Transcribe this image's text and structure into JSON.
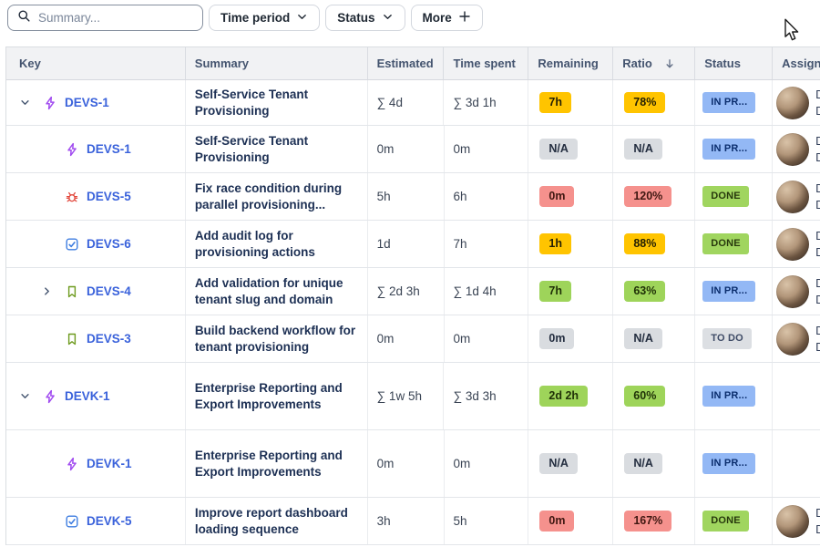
{
  "toolbar": {
    "search": {
      "placeholder": "Summary...",
      "icon": "search-icon"
    },
    "filters": [
      {
        "label": "Time period",
        "icon": "chevron-down-icon"
      },
      {
        "label": "Status",
        "icon": "chevron-down-icon"
      },
      {
        "label": "More",
        "icon": "plus-icon"
      }
    ]
  },
  "table": {
    "columns": [
      {
        "label": "Key"
      },
      {
        "label": "Summary"
      },
      {
        "label": "Estimated"
      },
      {
        "label": "Time spent"
      },
      {
        "label": "Remaining"
      },
      {
        "label": "Ratio",
        "sort": true
      },
      {
        "label": "Status"
      },
      {
        "label": "Assignee"
      }
    ],
    "sort": {
      "column": "Ratio",
      "direction": "descending",
      "icon": "arrow-down-icon"
    },
    "rows": [
      {
        "key": "DEVS-1",
        "type": "epic",
        "level": 0,
        "chevron": "down",
        "summary": "Self-Service Tenant Provisioning",
        "estimated": "∑ 4d",
        "time_spent": "∑ 3d 1h",
        "remaining": {
          "text": "7h",
          "color": "yellow"
        },
        "ratio": {
          "text": "78%",
          "color": "yellow"
        },
        "status": {
          "text": "IN PR...",
          "color": "blue"
        },
        "assignee": {
          "avatar": true,
          "lines": [
            "D",
            "D"
          ]
        },
        "tall": false
      },
      {
        "key": "DEVS-1",
        "type": "epic",
        "level": 1,
        "chevron": null,
        "summary": "Self-Service Tenant Provisioning",
        "estimated": "0m",
        "time_spent": "0m",
        "remaining": {
          "text": "N/A",
          "color": "gray"
        },
        "ratio": {
          "text": "N/A",
          "color": "gray"
        },
        "status": {
          "text": "IN PR...",
          "color": "blue"
        },
        "assignee": {
          "avatar": true,
          "lines": [
            "D",
            "D"
          ]
        },
        "tall": false
      },
      {
        "key": "DEVS-5",
        "type": "bug",
        "level": 1,
        "chevron": null,
        "summary": "Fix race condition during parallel provisioning...",
        "estimated": "5h",
        "time_spent": "6h",
        "remaining": {
          "text": "0m",
          "color": "red"
        },
        "ratio": {
          "text": "120%",
          "color": "red"
        },
        "status": {
          "text": "DONE",
          "color": "green"
        },
        "assignee": {
          "avatar": true,
          "lines": [
            "D",
            "D"
          ]
        },
        "tall": false
      },
      {
        "key": "DEVS-6",
        "type": "task",
        "level": 1,
        "chevron": null,
        "summary": "Add audit log for provisioning actions",
        "estimated": "1d",
        "time_spent": "7h",
        "remaining": {
          "text": "1h",
          "color": "yellow"
        },
        "ratio": {
          "text": "88%",
          "color": "yellow"
        },
        "status": {
          "text": "DONE",
          "color": "green"
        },
        "assignee": {
          "avatar": true,
          "lines": [
            "D",
            "D"
          ]
        },
        "tall": false
      },
      {
        "key": "DEVS-4",
        "type": "story",
        "level": 1,
        "chevron": "right",
        "summary": "Add validation for unique tenant slug and domain",
        "estimated": "∑ 2d 3h",
        "time_spent": "∑ 1d 4h",
        "remaining": {
          "text": "7h",
          "color": "green"
        },
        "ratio": {
          "text": "63%",
          "color": "green"
        },
        "status": {
          "text": "IN PR...",
          "color": "blue"
        },
        "assignee": {
          "avatar": true,
          "lines": [
            "D",
            "D"
          ]
        },
        "tall": false
      },
      {
        "key": "DEVS-3",
        "type": "story",
        "level": 1,
        "chevron": null,
        "summary": "Build backend workflow for tenant provisioning",
        "estimated": "0m",
        "time_spent": "0m",
        "remaining": {
          "text": "0m",
          "color": "gray"
        },
        "ratio": {
          "text": "N/A",
          "color": "gray"
        },
        "status": {
          "text": "TO DO",
          "color": "gray"
        },
        "assignee": {
          "avatar": true,
          "lines": [
            "D",
            "D"
          ]
        },
        "tall": false
      },
      {
        "key": "DEVK-1",
        "type": "epic",
        "level": 0,
        "chevron": "down",
        "summary": "Enterprise Reporting and Export Improvements",
        "estimated": "∑ 1w 5h",
        "time_spent": "∑ 3d 3h",
        "remaining": {
          "text": "2d 2h",
          "color": "green"
        },
        "ratio": {
          "text": "60%",
          "color": "green"
        },
        "status": {
          "text": "IN PR...",
          "color": "blue"
        },
        "assignee": null,
        "tall": true
      },
      {
        "key": "DEVK-1",
        "type": "epic",
        "level": 1,
        "chevron": null,
        "summary": "Enterprise Reporting and Export Improvements",
        "estimated": "0m",
        "time_spent": "0m",
        "remaining": {
          "text": "N/A",
          "color": "gray"
        },
        "ratio": {
          "text": "N/A",
          "color": "gray"
        },
        "status": {
          "text": "IN PR...",
          "color": "blue"
        },
        "assignee": null,
        "tall": true
      },
      {
        "key": "DEVK-5",
        "type": "task",
        "level": 1,
        "chevron": null,
        "summary": "Improve report dashboard loading sequence",
        "estimated": "3h",
        "time_spent": "5h",
        "remaining": {
          "text": "0m",
          "color": "red"
        },
        "ratio": {
          "text": "167%",
          "color": "red"
        },
        "status": {
          "text": "DONE",
          "color": "green"
        },
        "assignee": {
          "avatar": true,
          "lines": [
            "D",
            "D"
          ]
        },
        "tall": false
      }
    ]
  },
  "colors": {
    "badge_yellow": "#FFC400",
    "badge_green": "#9ED45A",
    "badge_red": "#F5918D",
    "badge_gray": "#D9DCE0",
    "chip_blue": "#93B8F5",
    "chip_green": "#A0D55F",
    "chip_gray": "#DCDFE3",
    "link_blue": "#3A62DB",
    "epic_purple": "#A24EF0",
    "bug_red": "#E2483D",
    "task_blue": "#3E7DE0",
    "story_green": "#6E9B1F",
    "header_bg": "#F1F2F4",
    "header_text": "#44546F"
  }
}
